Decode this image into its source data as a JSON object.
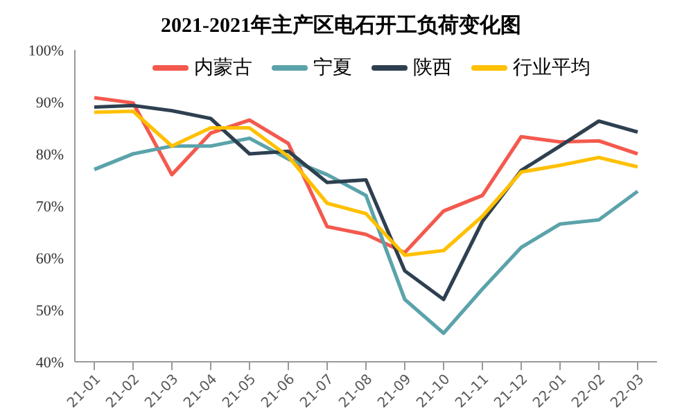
{
  "chart_data": {
    "type": "line",
    "title": "2021-2021年主产区电石开工负荷变化图",
    "categories": [
      "21-01",
      "21-02",
      "21-03",
      "21-04",
      "21-05",
      "21-06",
      "21-07",
      "21-08",
      "21-09",
      "21-10",
      "21-11",
      "21-12",
      "22-01",
      "22-02",
      "22-03"
    ],
    "series": [
      {
        "name": "内蒙古",
        "color": "#f4594e",
        "values": [
          90.8,
          89.8,
          76,
          84,
          86.5,
          82,
          66,
          64.5,
          61,
          69,
          72,
          83.3,
          82.3,
          82.5,
          80
        ]
      },
      {
        "name": "宁夏",
        "color": "#5ba3aa",
        "values": [
          77,
          80,
          81.5,
          81.5,
          83,
          79,
          76,
          72,
          52,
          45.5,
          54,
          62,
          66.5,
          67.3,
          72.8
        ]
      },
      {
        "name": "陕西",
        "color": "#2e4050",
        "values": [
          89,
          89.3,
          88.3,
          86.8,
          80,
          80.5,
          74.5,
          75,
          57.5,
          52,
          67,
          76.8,
          81.5,
          86.3,
          84.2
        ]
      },
      {
        "name": "行业平均",
        "color": "#ffc000",
        "values": [
          88,
          88.2,
          81.5,
          85,
          85,
          79.5,
          70.5,
          68.5,
          60.5,
          61.4,
          68,
          76.5,
          77.8,
          79.3,
          77.5
        ]
      }
    ],
    "ylim": [
      40,
      100
    ],
    "yticks": [
      {
        "value": 40,
        "label": "40%"
      },
      {
        "value": 50,
        "label": "50%"
      },
      {
        "value": 60,
        "label": "60%"
      },
      {
        "value": 70,
        "label": "70%"
      },
      {
        "value": 80,
        "label": "80%"
      },
      {
        "value": 90,
        "label": "90%"
      },
      {
        "value": 100,
        "label": "100%"
      }
    ],
    "grid": false,
    "legend": "top",
    "marker": "none",
    "line_style": "solid"
  }
}
